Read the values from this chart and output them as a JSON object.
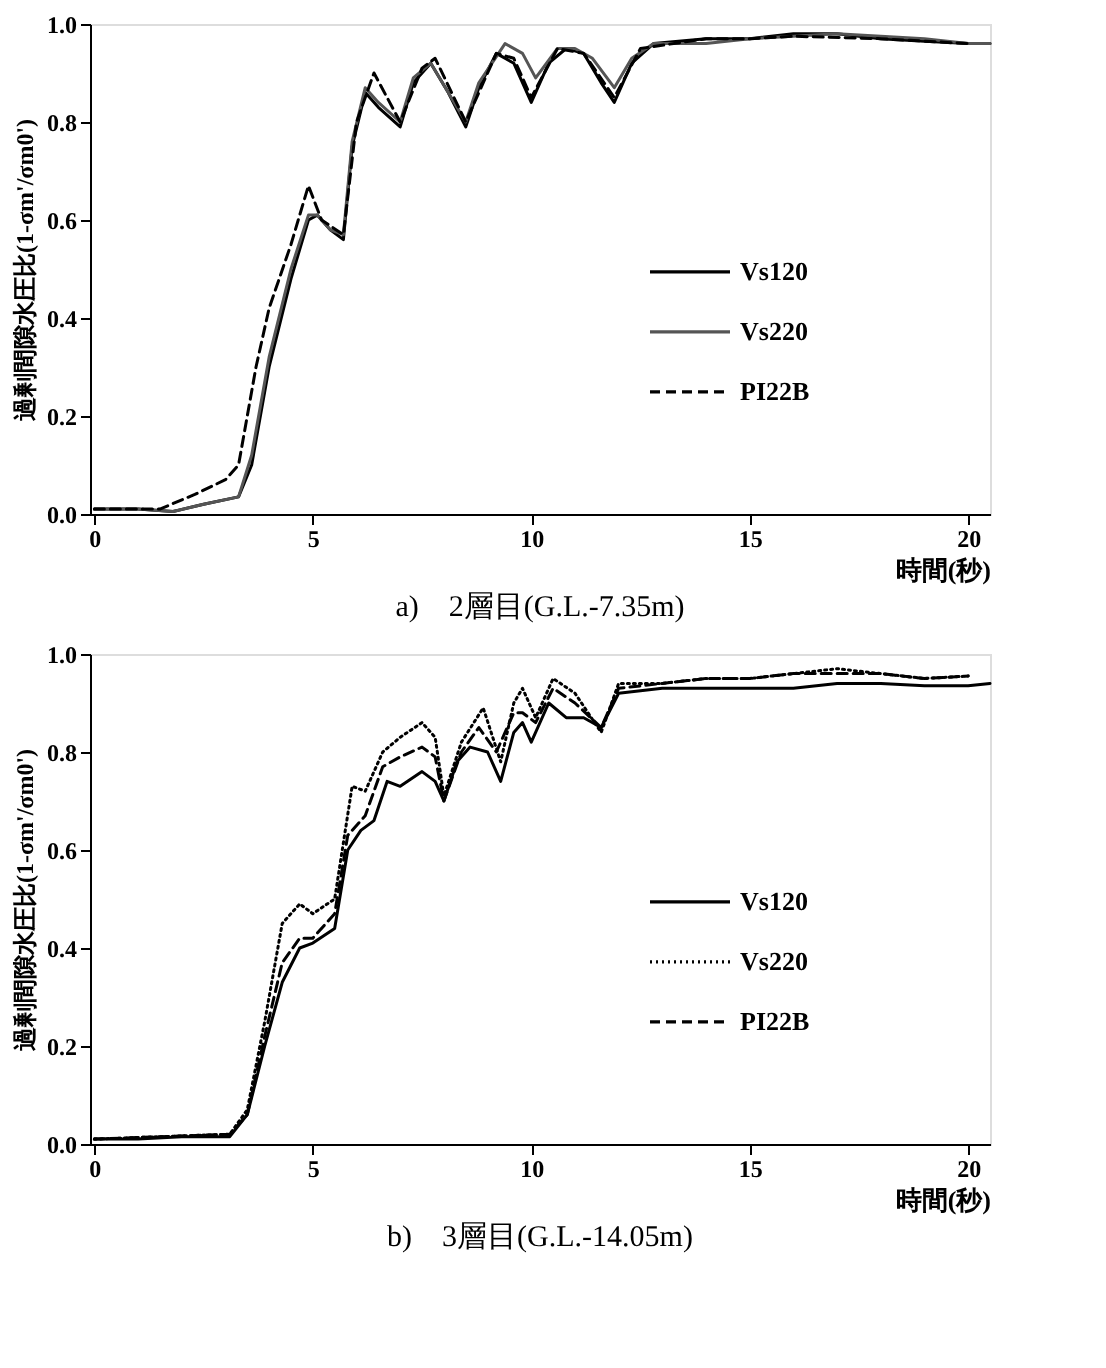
{
  "chart_data": [
    {
      "type": "line",
      "title": "a)　2層目(G.L.-7.35m)",
      "xlabel": "時間(秒)",
      "ylabel": "過剰間隙水圧比(1-σm'/σm0')",
      "xlim": [
        -0.1,
        20.5
      ],
      "xticks": [
        0,
        5,
        10,
        15,
        20
      ],
      "ylim": [
        0,
        1.0
      ],
      "yticks": [
        {
          "value": 0,
          "label": "0.0"
        },
        {
          "value": 0.2,
          "label": "0.2"
        },
        {
          "value": 0.4,
          "label": "0.4"
        },
        {
          "value": 0.6,
          "label": "0.6"
        },
        {
          "value": 0.8,
          "label": "0.8"
        },
        {
          "value": 1.0,
          "label": "1.0"
        }
      ],
      "grid": false,
      "legend": "right",
      "series": [
        {
          "name": "Vs120",
          "color": "#000000",
          "line_style": "solid",
          "x": [
            0,
            1,
            1.8,
            2.5,
            3.3,
            3.6,
            4.0,
            4.5,
            4.9,
            5.1,
            5.4,
            5.7,
            5.9,
            6.2,
            6.5,
            7.0,
            7.3,
            7.7,
            8.1,
            8.5,
            8.8,
            9.2,
            9.6,
            10.0,
            10.4,
            10.8,
            11.2,
            11.6,
            11.9,
            12.3,
            12.8,
            14,
            15,
            16,
            17,
            18,
            19,
            20,
            20.5
          ],
          "values": [
            0.01,
            0.01,
            0.005,
            0.02,
            0.035,
            0.1,
            0.3,
            0.48,
            0.6,
            0.61,
            0.58,
            0.56,
            0.75,
            0.86,
            0.83,
            0.79,
            0.88,
            0.92,
            0.86,
            0.79,
            0.87,
            0.94,
            0.92,
            0.84,
            0.92,
            0.95,
            0.94,
            0.88,
            0.84,
            0.92,
            0.96,
            0.97,
            0.97,
            0.98,
            0.98,
            0.97,
            0.965,
            0.96,
            0.96
          ]
        },
        {
          "name": "Vs220",
          "color": "#555555",
          "line_style": "solid",
          "x": [
            0,
            1,
            1.8,
            2.5,
            3.3,
            3.6,
            4.0,
            4.5,
            4.9,
            5.1,
            5.4,
            5.7,
            5.9,
            6.2,
            6.5,
            7.0,
            7.3,
            7.7,
            8.1,
            8.5,
            8.8,
            9.4,
            9.8,
            10.1,
            10.6,
            11.0,
            11.4,
            11.9,
            12.3,
            12.8,
            14,
            15,
            16,
            17,
            18,
            19,
            20,
            20.5
          ],
          "values": [
            0.01,
            0.01,
            0.005,
            0.02,
            0.035,
            0.12,
            0.32,
            0.5,
            0.61,
            0.61,
            0.58,
            0.57,
            0.76,
            0.87,
            0.84,
            0.8,
            0.89,
            0.92,
            0.86,
            0.8,
            0.88,
            0.96,
            0.94,
            0.89,
            0.95,
            0.95,
            0.93,
            0.87,
            0.93,
            0.96,
            0.96,
            0.97,
            0.975,
            0.98,
            0.975,
            0.97,
            0.96,
            0.96
          ]
        },
        {
          "name": "PI22B",
          "color": "#000000",
          "line_style": "dashed",
          "x": [
            0,
            1.5,
            2.3,
            3.0,
            3.3,
            3.7,
            4.0,
            4.5,
            4.9,
            5.2,
            5.7,
            6.0,
            6.4,
            7.0,
            7.5,
            7.8,
            8.5,
            9.2,
            9.6,
            10.0,
            10.6,
            11.2,
            11.9,
            12.5,
            14,
            15,
            16,
            18,
            20
          ],
          "values": [
            0.01,
            0.01,
            0.04,
            0.07,
            0.1,
            0.3,
            0.42,
            0.55,
            0.67,
            0.6,
            0.57,
            0.8,
            0.9,
            0.8,
            0.91,
            0.93,
            0.8,
            0.94,
            0.93,
            0.85,
            0.95,
            0.94,
            0.85,
            0.95,
            0.97,
            0.97,
            0.975,
            0.97,
            0.96
          ]
        }
      ]
    },
    {
      "type": "line",
      "title": "b)　3層目(G.L.-14.05m)",
      "xlabel": "時間(秒)",
      "ylabel": "過剰間隙水圧比(1-σm'/σm0')",
      "xlim": [
        -0.1,
        20.5
      ],
      "xticks": [
        0,
        5,
        10,
        15,
        20
      ],
      "ylim": [
        0,
        1.0
      ],
      "yticks": [
        {
          "value": 0,
          "label": "0.0"
        },
        {
          "value": 0.2,
          "label": "0.2"
        },
        {
          "value": 0.4,
          "label": "0.4"
        },
        {
          "value": 0.6,
          "label": "0.6"
        },
        {
          "value": 0.8,
          "label": "0.8"
        },
        {
          "value": 1.0,
          "label": "1.0"
        }
      ],
      "grid": false,
      "legend": "right",
      "series": [
        {
          "name": "Vs120",
          "color": "#000000",
          "line_style": "solid",
          "x": [
            0,
            1,
            2,
            3.1,
            3.5,
            3.9,
            4.3,
            4.7,
            5.0,
            5.5,
            5.8,
            6.1,
            6.4,
            6.7,
            7.0,
            7.5,
            7.8,
            8.0,
            8.3,
            8.6,
            9.0,
            9.3,
            9.6,
            9.8,
            10.0,
            10.4,
            10.8,
            11.2,
            11.6,
            12.0,
            13,
            14,
            15,
            16,
            17,
            18,
            19,
            20,
            20.5
          ],
          "values": [
            0.01,
            0.01,
            0.015,
            0.015,
            0.06,
            0.2,
            0.33,
            0.4,
            0.41,
            0.44,
            0.6,
            0.64,
            0.66,
            0.74,
            0.73,
            0.76,
            0.74,
            0.7,
            0.78,
            0.81,
            0.8,
            0.74,
            0.84,
            0.86,
            0.82,
            0.9,
            0.87,
            0.87,
            0.85,
            0.92,
            0.93,
            0.93,
            0.93,
            0.93,
            0.94,
            0.94,
            0.935,
            0.935,
            0.94
          ]
        },
        {
          "name": "Vs220",
          "color": "#000000",
          "line_style": "dotted",
          "x": [
            0,
            3.1,
            3.5,
            3.9,
            4.3,
            4.7,
            5.0,
            5.5,
            5.9,
            6.2,
            6.6,
            7.0,
            7.5,
            7.8,
            8.0,
            8.4,
            8.9,
            9.3,
            9.6,
            9.8,
            10.1,
            10.5,
            11.0,
            11.6,
            12.0,
            13,
            14,
            15,
            16,
            17,
            18,
            19,
            20
          ],
          "values": [
            0.01,
            0.02,
            0.07,
            0.25,
            0.45,
            0.49,
            0.47,
            0.5,
            0.73,
            0.72,
            0.8,
            0.83,
            0.86,
            0.83,
            0.71,
            0.82,
            0.89,
            0.78,
            0.9,
            0.93,
            0.87,
            0.95,
            0.92,
            0.84,
            0.94,
            0.94,
            0.95,
            0.95,
            0.96,
            0.97,
            0.96,
            0.95,
            0.955
          ]
        },
        {
          "name": "PI22B",
          "color": "#000000",
          "line_style": "dashed",
          "x": [
            0,
            3.1,
            3.5,
            3.9,
            4.3,
            4.7,
            5.0,
            5.5,
            5.8,
            6.2,
            6.6,
            7.0,
            7.5,
            7.8,
            8.0,
            8.4,
            8.8,
            9.2,
            9.6,
            9.8,
            10.1,
            10.5,
            11.0,
            11.6,
            12.0,
            13,
            14,
            15,
            16,
            17,
            18,
            19,
            20
          ],
          "values": [
            0.01,
            0.02,
            0.06,
            0.22,
            0.37,
            0.42,
            0.42,
            0.47,
            0.63,
            0.67,
            0.77,
            0.79,
            0.81,
            0.79,
            0.7,
            0.8,
            0.85,
            0.8,
            0.88,
            0.88,
            0.86,
            0.93,
            0.9,
            0.85,
            0.93,
            0.94,
            0.95,
            0.95,
            0.96,
            0.96,
            0.96,
            0.95,
            0.955
          ]
        }
      ]
    }
  ]
}
